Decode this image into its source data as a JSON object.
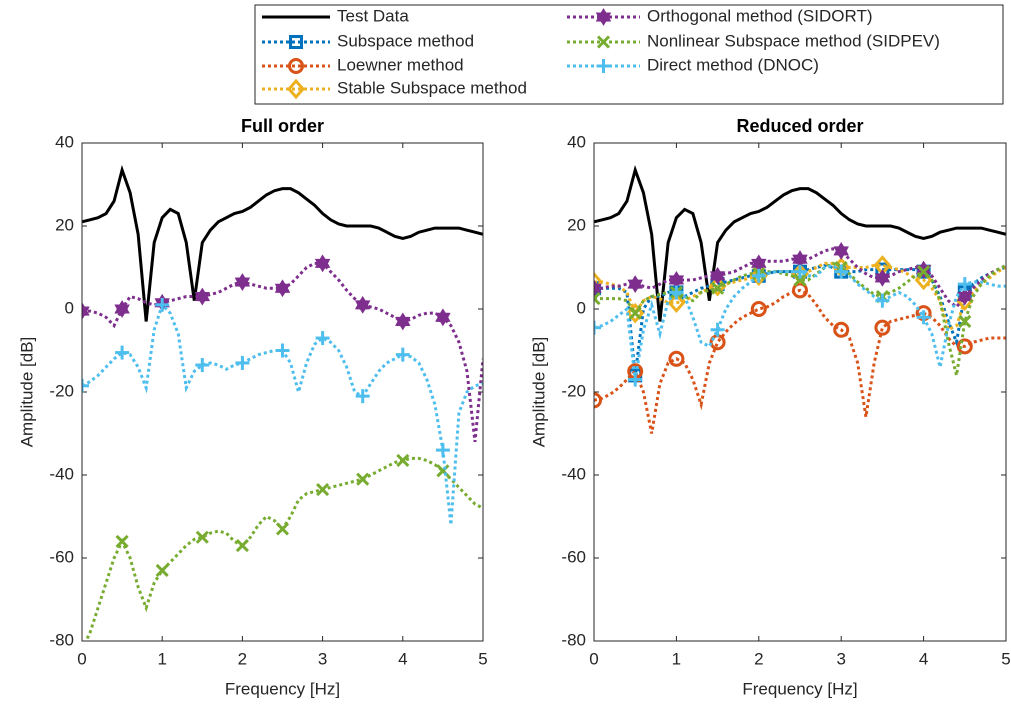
{
  "chart_data": [
    {
      "type": "line",
      "title": "Full order",
      "xlabel": "Frequency [Hz]",
      "ylabel": "Amplitude [dB]",
      "xlim": [
        0,
        5
      ],
      "ylim": [
        -80,
        40
      ],
      "xticks": [
        0,
        1,
        2,
        3,
        4,
        5
      ],
      "yticks": [
        -80,
        -60,
        -40,
        -20,
        0,
        20,
        40
      ],
      "x": [
        0,
        0.1,
        0.2,
        0.3,
        0.4,
        0.5,
        0.6,
        0.7,
        0.8,
        0.9,
        1,
        1.1,
        1.2,
        1.3,
        1.4,
        1.5,
        1.6,
        1.7,
        1.8,
        1.9,
        2,
        2.1,
        2.2,
        2.3,
        2.4,
        2.5,
        2.6,
        2.7,
        2.8,
        2.9,
        3,
        3.1,
        3.2,
        3.3,
        3.4,
        3.5,
        3.6,
        3.7,
        3.8,
        3.9,
        4,
        4.1,
        4.2,
        4.3,
        4.4,
        4.5,
        4.6,
        4.7,
        4.8,
        4.9,
        5
      ],
      "series": [
        {
          "name": "Test Data",
          "color": "#000000",
          "marker": "none",
          "linestyle": "solid",
          "values": [
            21,
            21.5,
            22,
            23,
            26,
            33.5,
            28,
            18,
            -3,
            16,
            22,
            24,
            23,
            16,
            2,
            16,
            19,
            21,
            22,
            23,
            23.5,
            24.5,
            26,
            27.5,
            28.5,
            29,
            29,
            28,
            26.5,
            25,
            23,
            21.5,
            20.5,
            20,
            20,
            20,
            20,
            19.5,
            18.5,
            17.5,
            17,
            17.5,
            18.5,
            19,
            19.5,
            19.5,
            19.5,
            19.5,
            19,
            18.5,
            18
          ]
        },
        {
          "name": "Orthogonal method (SIDORT)",
          "color": "#7E2F8E",
          "marker": "hexagram",
          "linestyle": "dotted",
          "values": [
            -0.5,
            -0.5,
            -1,
            -2,
            -4,
            0,
            3,
            2.5,
            1.5,
            1,
            1.5,
            2,
            2.5,
            3,
            3,
            3,
            3.5,
            4,
            5,
            6,
            6.5,
            6,
            5.5,
            5,
            5,
            5,
            6,
            8,
            10,
            11,
            11,
            9,
            7,
            4.5,
            2.5,
            1,
            0.5,
            0,
            -1,
            -2,
            -3,
            -2.5,
            -1.5,
            -1,
            -1,
            -2,
            -4,
            -8,
            -15,
            -32,
            -12
          ]
        },
        {
          "name": "Nonlinear Subspace method (SIDPEV)",
          "color": "#77AC30",
          "marker": "x",
          "linestyle": "dotted",
          "values": [
            -82,
            -78,
            -72,
            -66,
            -60,
            -56,
            -60,
            -67,
            -72,
            -66,
            -63,
            -61,
            -59,
            -57,
            -55.5,
            -55,
            -54,
            -53.5,
            -54,
            -56,
            -57,
            -55,
            -52,
            -50,
            -51,
            -53,
            -50,
            -46,
            -44.5,
            -44,
            -43.5,
            -43,
            -42.5,
            -42,
            -41.5,
            -41,
            -40,
            -39,
            -38,
            -37,
            -36.5,
            -36,
            -36,
            -36.5,
            -37.5,
            -39,
            -41,
            -43,
            -45,
            -47,
            -48
          ]
        },
        {
          "name": "Direct method (DNOC)",
          "color": "#4DBEEE",
          "marker": "plus",
          "linestyle": "dotted",
          "values": [
            -18.5,
            -17.5,
            -16,
            -14,
            -12,
            -10.5,
            -11,
            -14,
            -19,
            -5,
            1,
            -1,
            -6,
            -19,
            -15,
            -13.5,
            -13,
            -13.5,
            -14.5,
            -13.5,
            -13,
            -12,
            -11,
            -10.5,
            -10,
            -10,
            -13,
            -20,
            -13,
            -8.5,
            -7,
            -8,
            -10,
            -14,
            -20,
            -21,
            -18,
            -15,
            -13,
            -12,
            -11,
            -11.5,
            -13,
            -17,
            -23,
            -34,
            -52,
            -25,
            -20,
            -18.5,
            -18
          ]
        }
      ]
    },
    {
      "type": "line",
      "title": "Reduced order",
      "xlabel": "Frequency [Hz]",
      "ylabel": "Amplitude [dB]",
      "legend": "top",
      "xlim": [
        0,
        5
      ],
      "ylim": [
        -80,
        40
      ],
      "xticks": [
        0,
        1,
        2,
        3,
        4,
        5
      ],
      "yticks": [
        -80,
        -60,
        -40,
        -20,
        0,
        20,
        40
      ],
      "x": [
        0,
        0.1,
        0.2,
        0.3,
        0.4,
        0.5,
        0.6,
        0.7,
        0.8,
        0.9,
        1,
        1.1,
        1.2,
        1.3,
        1.4,
        1.5,
        1.6,
        1.7,
        1.8,
        1.9,
        2,
        2.1,
        2.2,
        2.3,
        2.4,
        2.5,
        2.6,
        2.7,
        2.8,
        2.9,
        3,
        3.1,
        3.2,
        3.3,
        3.4,
        3.5,
        3.6,
        3.7,
        3.8,
        3.9,
        4,
        4.1,
        4.2,
        4.3,
        4.4,
        4.5,
        4.6,
        4.7,
        4.8,
        4.9,
        5
      ],
      "series": [
        {
          "name": "Test Data",
          "color": "#000000",
          "marker": "none",
          "linestyle": "solid",
          "values": [
            21,
            21.5,
            22,
            23,
            26,
            33.5,
            28,
            18,
            -3,
            16,
            22,
            24,
            23,
            16,
            2,
            16,
            19,
            21,
            22,
            23,
            23.5,
            24.5,
            26,
            27.5,
            28.5,
            29,
            29,
            28,
            26.5,
            25,
            23,
            21.5,
            20.5,
            20,
            20,
            20,
            20,
            19.5,
            18.5,
            17.5,
            17,
            17.5,
            18.5,
            19,
            19.5,
            19.5,
            19.5,
            19.5,
            19,
            18.5,
            18
          ]
        },
        {
          "name": "Subspace method",
          "color": "#0072BD",
          "marker": "square",
          "linestyle": "dotted",
          "values": [
            5,
            5,
            5,
            5,
            4,
            -16,
            0,
            3,
            3,
            4,
            4,
            3,
            4,
            5,
            5.5,
            6,
            6.5,
            7,
            7.5,
            8,
            8,
            8.5,
            9,
            9,
            9,
            9,
            9.5,
            10,
            10.5,
            10,
            9,
            9,
            9,
            9.5,
            9.5,
            9.5,
            9.5,
            9.5,
            9.5,
            9.5,
            9,
            7,
            3,
            -3,
            -8,
            4,
            6,
            7.5,
            8.5,
            9.5,
            10
          ]
        },
        {
          "name": "Loewner method",
          "color": "#D95319",
          "marker": "circle",
          "linestyle": "dotted",
          "values": [
            -22,
            -21.5,
            -20.5,
            -19,
            -17,
            -15,
            -20,
            -30,
            -18,
            -13,
            -12,
            -13,
            -17,
            -23,
            -13,
            -8,
            -5.5,
            -3.5,
            -2,
            -1,
            0,
            0.5,
            1.5,
            3,
            4,
            4.5,
            3.5,
            1,
            -2,
            -4,
            -5,
            -7,
            -13,
            -26,
            -13,
            -4.5,
            -3,
            -2.5,
            -2,
            -1.5,
            -1,
            -2,
            -4,
            -7,
            -9,
            -9,
            -8,
            -7.5,
            -7,
            -7,
            -7
          ]
        },
        {
          "name": "Stable Subspace method",
          "color": "#EDB120",
          "marker": "diamond",
          "linestyle": "dotted",
          "values": [
            6.5,
            6.5,
            6,
            5.5,
            4,
            -1,
            2,
            3,
            2.5,
            1.5,
            1.5,
            2,
            3,
            4,
            5,
            5.5,
            6,
            6.5,
            7,
            7.5,
            8,
            8.5,
            9,
            9,
            9,
            8.5,
            9,
            10,
            11,
            11,
            10,
            10,
            10,
            10,
            10.5,
            10.5,
            10,
            9.5,
            8.5,
            7.5,
            7,
            5,
            2,
            -5,
            -4,
            2,
            4,
            6,
            7.5,
            9,
            10
          ]
        },
        {
          "name": "Orthogonal method (SIDORT)",
          "color": "#7E2F8E",
          "marker": "hexagram",
          "linestyle": "dotted",
          "values": [
            5,
            5,
            5.5,
            5.5,
            6,
            6,
            5.5,
            5,
            6,
            7,
            7,
            7,
            7,
            7.5,
            8,
            8,
            8.5,
            9,
            10,
            11,
            11,
            11.5,
            11.5,
            11.5,
            12,
            12,
            12,
            13,
            14,
            14.5,
            14,
            12,
            10,
            8.5,
            7.5,
            7.5,
            8,
            9,
            9.5,
            10,
            9.5,
            8,
            5,
            2,
            0.5,
            3,
            5,
            7,
            8.5,
            9.5,
            10.5
          ]
        },
        {
          "name": "Nonlinear Subspace method (SIDPEV)",
          "color": "#77AC30",
          "marker": "x",
          "linestyle": "dotted",
          "values": [
            2.5,
            2.5,
            2.5,
            2.5,
            2,
            -1,
            2,
            3,
            3.5,
            4,
            4,
            3,
            2,
            4,
            4.5,
            5,
            6,
            7,
            8,
            8.5,
            8.5,
            9,
            9,
            8.5,
            8,
            7,
            7,
            8.5,
            10,
            11,
            10,
            8.5,
            6.5,
            5,
            3.5,
            3,
            4,
            5,
            6.5,
            8,
            9,
            7,
            2,
            -8,
            -16,
            -3,
            3,
            6,
            8,
            9.5,
            10.5
          ]
        },
        {
          "name": "Direct method (DNOC)",
          "color": "#4DBEEE",
          "marker": "plus",
          "linestyle": "dotted",
          "values": [
            -4.5,
            -4,
            -3,
            -1.5,
            0,
            -17,
            -5,
            1,
            -6,
            2,
            4,
            3,
            -2,
            -8,
            -9,
            -5,
            0,
            3,
            5,
            6.5,
            8,
            8.5,
            9,
            9,
            9,
            9,
            8,
            8,
            10,
            10.5,
            9,
            8,
            6,
            4.5,
            3,
            2,
            3,
            4,
            3,
            1,
            -2,
            -6,
            -14,
            -4,
            3,
            6,
            6.5,
            6.5,
            6,
            5.5,
            5.5
          ]
        }
      ]
    }
  ]
}
